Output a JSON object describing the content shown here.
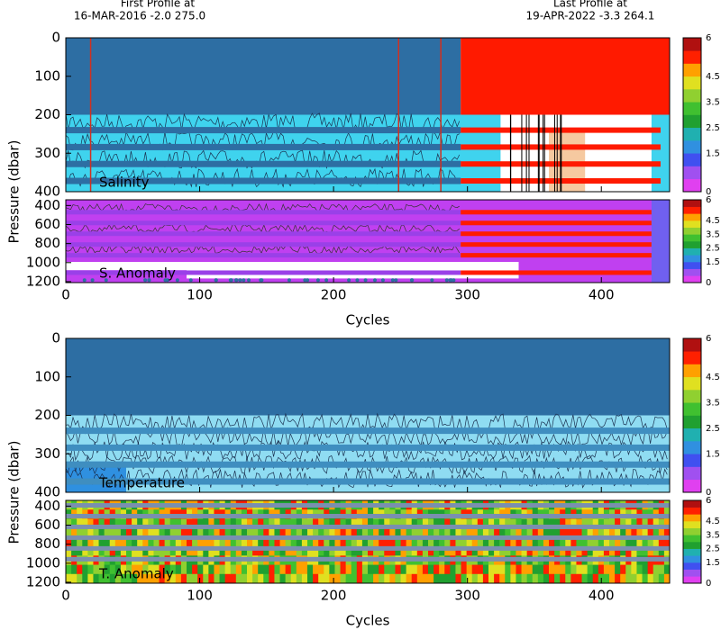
{
  "header": {
    "first_label": "First Profile at",
    "first_info": "16-MAR-2016    -2.0 275.0",
    "last_label": "Last Profile at",
    "last_info": "19-APR-2022    -3.3 264.1"
  },
  "chart_data": [
    {
      "type": "heatmap",
      "label": "Salinity",
      "ylabel": "Pressure (dbar)",
      "xlim": [
        0,
        451
      ],
      "xticks": [
        0,
        100,
        200,
        300,
        400
      ],
      "ylim": [
        0,
        400
      ],
      "yticks": [
        0,
        100,
        200,
        300,
        400
      ],
      "colorbar": {
        "range": [
          0,
          6
        ],
        "ticks": [
          0,
          1.5,
          2.5,
          3.5,
          4.5,
          6
        ],
        "colors": [
          "#e040f0",
          "#a050f0",
          "#4050f0",
          "#3090e0",
          "#20b0b0",
          "#20a030",
          "#40c030",
          "#90d030",
          "#e0e020",
          "#ffa000",
          "#ff2000",
          "#b01010"
        ]
      }
    },
    {
      "type": "heatmap",
      "label": "S. Anomaly",
      "xlabel": "Cycles",
      "xlim": [
        0,
        451
      ],
      "xticks": [
        0,
        100,
        200,
        300,
        400
      ],
      "ylim": [
        340,
        1210
      ],
      "yticks": [
        400,
        600,
        800,
        1000,
        1200
      ],
      "colorbar": {
        "range": [
          0,
          6
        ],
        "ticks": [
          0,
          1.5,
          2.5,
          3.5,
          4.5,
          6
        ],
        "colors": [
          "#e040f0",
          "#a050f0",
          "#4050f0",
          "#3090e0",
          "#20b0b0",
          "#20a030",
          "#40c030",
          "#90d030",
          "#e0e020",
          "#ffa000",
          "#ff2000",
          "#b01010"
        ]
      }
    },
    {
      "type": "heatmap",
      "label": "Temperature",
      "ylabel": "Pressure (dbar)",
      "xlim": [
        0,
        451
      ],
      "xticks": [
        0,
        100,
        200,
        300,
        400
      ],
      "ylim": [
        0,
        400
      ],
      "yticks": [
        0,
        100,
        200,
        300,
        400
      ],
      "colorbar": {
        "range": [
          0,
          6
        ],
        "ticks": [
          0,
          1.5,
          2.5,
          3.5,
          4.5,
          6
        ],
        "colors": [
          "#e040f0",
          "#a050f0",
          "#4050f0",
          "#3090e0",
          "#20b0b0",
          "#20a030",
          "#40c030",
          "#90d030",
          "#e0e020",
          "#ffa000",
          "#ff2000",
          "#b01010"
        ]
      }
    },
    {
      "type": "heatmap",
      "label": "T. Anomaly",
      "xlabel": "Cycles",
      "xlim": [
        0,
        451
      ],
      "xticks": [
        0,
        100,
        200,
        300,
        400
      ],
      "ylim": [
        340,
        1210
      ],
      "yticks": [
        400,
        600,
        800,
        1000,
        1200
      ],
      "colorbar": {
        "range": [
          0,
          6
        ],
        "ticks": [
          0,
          1.5,
          2.5,
          3.5,
          4.5,
          6
        ],
        "colors": [
          "#e040f0",
          "#a050f0",
          "#4050f0",
          "#3090e0",
          "#20b0b0",
          "#20a030",
          "#40c030",
          "#90d030",
          "#e0e020",
          "#ffa000",
          "#ff2000",
          "#b01010"
        ]
      }
    }
  ]
}
